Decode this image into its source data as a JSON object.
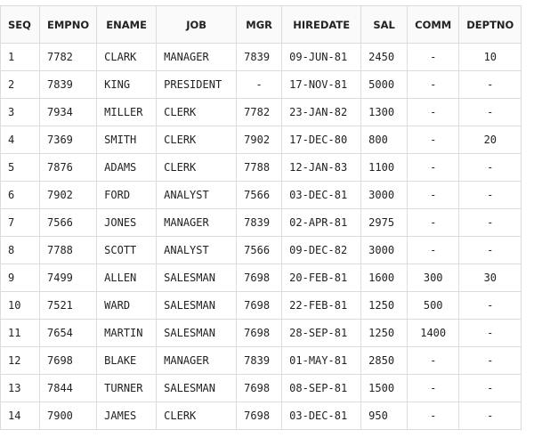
{
  "table": {
    "headers": [
      "SEQ",
      "EMPNO",
      "ENAME",
      "JOB",
      "MGR",
      "HIREDATE",
      "SAL",
      "COMM",
      "DEPTNO"
    ],
    "rows": [
      [
        "1",
        "7782",
        "CLARK",
        "MANAGER",
        "7839",
        "09-JUN-81",
        "2450",
        "-",
        "10"
      ],
      [
        "2",
        "7839",
        "KING",
        "PRESIDENT",
        "-",
        "17-NOV-81",
        "5000",
        "-",
        "-"
      ],
      [
        "3",
        "7934",
        "MILLER",
        "CLERK",
        "7782",
        "23-JAN-82",
        "1300",
        "-",
        "-"
      ],
      [
        "4",
        "7369",
        "SMITH",
        "CLERK",
        "7902",
        "17-DEC-80",
        "800",
        "-",
        "20"
      ],
      [
        "5",
        "7876",
        "ADAMS",
        "CLERK",
        "7788",
        "12-JAN-83",
        "1100",
        "-",
        "-"
      ],
      [
        "6",
        "7902",
        "FORD",
        "ANALYST",
        "7566",
        "03-DEC-81",
        "3000",
        "-",
        "-"
      ],
      [
        "7",
        "7566",
        "JONES",
        "MANAGER",
        "7839",
        "02-APR-81",
        "2975",
        "-",
        "-"
      ],
      [
        "8",
        "7788",
        "SCOTT",
        "ANALYST",
        "7566",
        "09-DEC-82",
        "3000",
        "-",
        "-"
      ],
      [
        "9",
        "7499",
        "ALLEN",
        "SALESMAN",
        "7698",
        "20-FEB-81",
        "1600",
        "300",
        "30"
      ],
      [
        "10",
        "7521",
        "WARD",
        "SALESMAN",
        "7698",
        "22-FEB-81",
        "1250",
        "500",
        "-"
      ],
      [
        "11",
        "7654",
        "MARTIN",
        "SALESMAN",
        "7698",
        "28-SEP-81",
        "1250",
        "1400",
        "-"
      ],
      [
        "12",
        "7698",
        "BLAKE",
        "MANAGER",
        "7839",
        "01-MAY-81",
        "2850",
        "-",
        "-"
      ],
      [
        "13",
        "7844",
        "TURNER",
        "SALESMAN",
        "7698",
        "08-SEP-81",
        "1500",
        "-",
        "-"
      ],
      [
        "14",
        "7900",
        "JAMES",
        "CLERK",
        "7698",
        "03-DEC-81",
        "950",
        "-",
        "-"
      ]
    ]
  }
}
